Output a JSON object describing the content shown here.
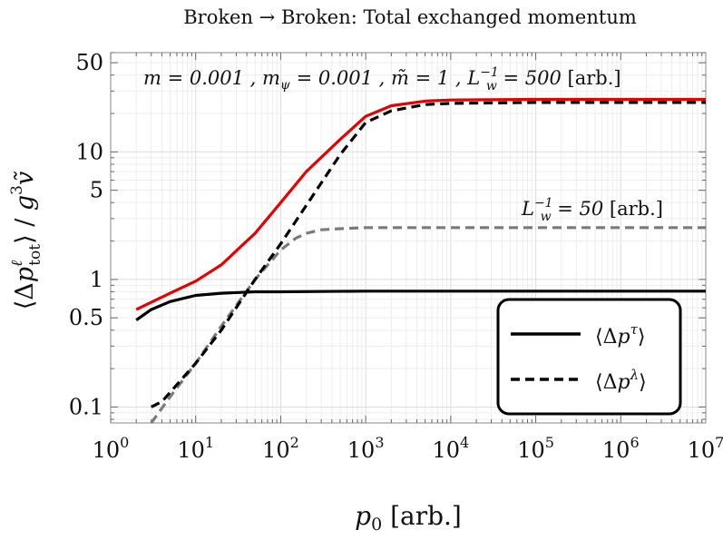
{
  "chart_data": {
    "type": "line",
    "title": "Broken → Broken: Total exchanged momentum",
    "xlabel": "p0 [arb.]",
    "ylabel": "⟨Δp^ℓ_tot⟩ / g^3 ṽ",
    "x_scale": "log",
    "y_scale": "log",
    "xlim": [
      1,
      10000000
    ],
    "ylim": [
      0.075,
      60
    ],
    "x_ticks": [
      {
        "value": 1,
        "base": "10",
        "exp": "0"
      },
      {
        "value": 10,
        "base": "10",
        "exp": "1"
      },
      {
        "value": 100,
        "base": "10",
        "exp": "2"
      },
      {
        "value": 1000,
        "base": "10",
        "exp": "3"
      },
      {
        "value": 10000,
        "base": "10",
        "exp": "4"
      },
      {
        "value": 100000,
        "base": "10",
        "exp": "5"
      },
      {
        "value": 1000000,
        "base": "10",
        "exp": "6"
      },
      {
        "value": 10000000,
        "base": "10",
        "exp": "7"
      }
    ],
    "y_ticks": [
      {
        "value": 0.1,
        "label": "0.1"
      },
      {
        "value": 0.5,
        "label": "0.5"
      },
      {
        "value": 1,
        "label": "1"
      },
      {
        "value": 5,
        "label": "5"
      },
      {
        "value": 10,
        "label": "10"
      },
      {
        "value": 50,
        "label": "50"
      }
    ],
    "grid": true,
    "annotations": [
      {
        "text": "m = 0.001 ,  m_ψ = 0.001 ,  m̃ = 1 ,  L_w^-1 = 500 [arb.]",
        "position": "top"
      },
      {
        "text": "L_w^-1 = 50 [arb.]",
        "position": "right, above grey dashed curve"
      }
    ],
    "legend": {
      "position": "bottom-right",
      "entries": [
        {
          "label": "⟨Δp^τ⟩",
          "style": "solid",
          "color": "#000000"
        },
        {
          "label": "⟨Δp^λ⟩",
          "style": "dashed",
          "color": "#000000"
        }
      ]
    },
    "series": [
      {
        "color": "#e00000",
        "dash": "solid",
        "x": [
          2,
          5,
          10,
          20,
          50,
          100,
          200,
          500,
          1000,
          2000,
          5000,
          10000,
          100000,
          1000000,
          10000000
        ],
        "y": [
          0.58,
          0.78,
          0.97,
          1.3,
          2.3,
          4.0,
          7.0,
          12.5,
          19.0,
          23.0,
          25.0,
          25.5,
          25.8,
          25.8,
          25.8
        ]
      },
      {
        "color": "#000000",
        "dash": "solid",
        "x": [
          2,
          3,
          5,
          10,
          20,
          50,
          100,
          1000,
          10000,
          100000,
          1000000,
          10000000
        ],
        "y": [
          0.48,
          0.58,
          0.67,
          0.75,
          0.78,
          0.8,
          0.8,
          0.81,
          0.81,
          0.81,
          0.81,
          0.81
        ]
      },
      {
        "color": "#000000",
        "dash": "dashed",
        "x": [
          3,
          4,
          5,
          10,
          20,
          50,
          100,
          200,
          500,
          1000,
          2000,
          5000,
          10000,
          100000,
          1000000,
          10000000
        ],
        "y": [
          0.1,
          0.11,
          0.13,
          0.22,
          0.4,
          1.0,
          1.9,
          3.8,
          9.5,
          17.0,
          21.0,
          23.5,
          24.0,
          24.4,
          24.4,
          24.4
        ]
      },
      {
        "color": "#7a7a7a",
        "dash": "dashed",
        "x": [
          3,
          5,
          10,
          20,
          50,
          100,
          150,
          200,
          300,
          500,
          1000,
          10000,
          100000,
          1000000,
          10000000
        ],
        "y": [
          0.075,
          0.12,
          0.22,
          0.43,
          1.0,
          1.7,
          2.1,
          2.3,
          2.45,
          2.5,
          2.55,
          2.55,
          2.55,
          2.55,
          2.55
        ]
      }
    ]
  }
}
